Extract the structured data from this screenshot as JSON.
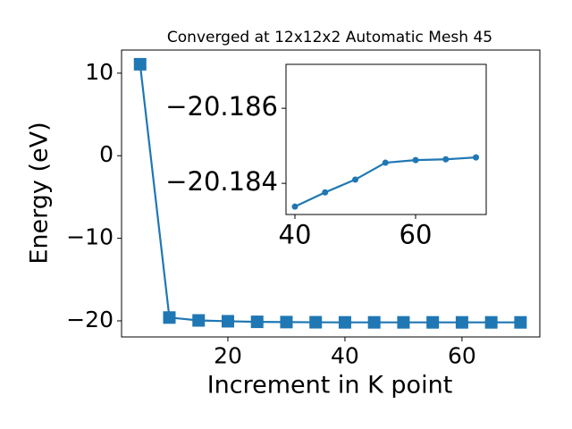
{
  "chart_data": [
    {
      "type": "line",
      "title": "Converged at 12x12x2 Automatic Mesh 45",
      "xlabel": "Increment in K point",
      "ylabel": "Energy (eV)",
      "x": [
        5,
        10,
        15,
        20,
        25,
        30,
        35,
        40,
        45,
        50,
        55,
        60,
        65,
        70
      ],
      "series": [
        {
          "color": "#1f77b4",
          "marker": "square",
          "values": [
            11.08,
            -19.6,
            -19.95,
            -20.05,
            -20.12,
            -20.15,
            -20.17,
            -20.18338,
            -20.18376,
            -20.1841,
            -20.18455,
            -20.18462,
            -20.18464,
            -20.18469
          ]
        }
      ],
      "xlim": [
        1.83,
        73.3
      ],
      "ylim": [
        -21.95,
        12.8
      ],
      "xticks": [
        20,
        40,
        60
      ],
      "yticks": [
        {
          "value": -20,
          "label": "−20"
        },
        {
          "value": -10,
          "label": "−10"
        },
        0,
        10
      ]
    },
    {
      "type": "line",
      "inset": true,
      "x": [
        40,
        45,
        50,
        55,
        60,
        65,
        70
      ],
      "series": [
        {
          "color": "#1f77b4",
          "marker": "circle",
          "values": [
            -20.18338,
            -20.18376,
            -20.1841,
            -20.18455,
            -20.18462,
            -20.18464,
            -20.18469
          ]
        }
      ],
      "xlim": [
        38.52,
        71.7
      ],
      "ylim": [
        -20.18317,
        -20.18717
      ],
      "xticks": [
        40,
        60
      ],
      "yticks": [
        {
          "value": -20.184,
          "label": "−20.184"
        },
        {
          "value": -20.186,
          "label": "−20.186"
        }
      ]
    }
  ]
}
